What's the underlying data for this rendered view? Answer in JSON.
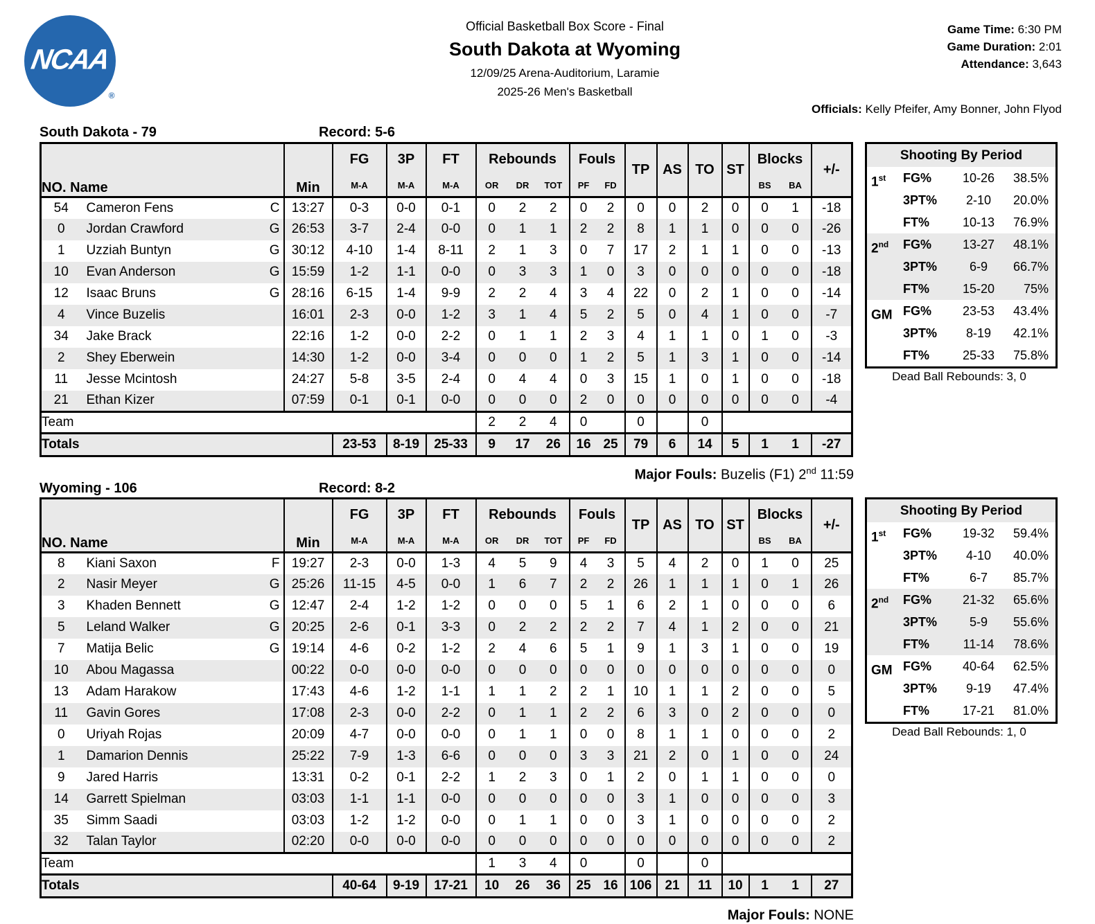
{
  "header": {
    "report_title": "Official Basketball Box Score - Final",
    "matchup": "South Dakota at Wyoming",
    "venue_line": "12/09/25 Arena-Auditorium, Laramie",
    "season_line": "2025-26 Men's Basketball",
    "game_time_label": "Game Time:",
    "game_time": " 6:30 PM",
    "game_duration_label": "Game Duration:",
    "game_duration": " 2:01",
    "attendance_label": "Attendance:",
    "attendance": " 3,643",
    "officials_label": "Officials:",
    "officials": " Kelly Pfeifer, Amy Bonner, John Flyod",
    "logo_text": "NCAA",
    "logo_reg": "®",
    "logo_color": "#2567ae"
  },
  "table_headers": {
    "no": "NO.",
    "name": "Name",
    "min": "Min",
    "fg": "FG",
    "p3": "3P",
    "ft": "FT",
    "ma": "M-A",
    "rebounds": "Rebounds",
    "or": "OR",
    "dr": "DR",
    "tot": "TOT",
    "fouls": "Fouls",
    "pf": "PF",
    "fd": "FD",
    "tp": "TP",
    "as": "AS",
    "to": "TO",
    "st": "ST",
    "blocks": "Blocks",
    "bs": "BS",
    "ba": "BA",
    "plus_minus": "+/-",
    "team_row_label": "Team",
    "totals_row_label": "Totals"
  },
  "teams": [
    {
      "title": "South Dakota - 79",
      "record": "Record: 5-6",
      "players": [
        {
          "no": "54",
          "name": "Cameron Fens",
          "pos": "C",
          "min": "13:27",
          "fg": "0-3",
          "p3": "0-0",
          "ft": "0-1",
          "or": "0",
          "dr": "2",
          "tot": "2",
          "pf": "0",
          "fd": "2",
          "tp": "0",
          "as": "0",
          "to": "2",
          "st": "0",
          "bs": "0",
          "ba": "1",
          "pm": "-18"
        },
        {
          "no": "0",
          "name": "Jordan Crawford",
          "pos": "G",
          "min": "26:53",
          "fg": "3-7",
          "p3": "2-4",
          "ft": "0-0",
          "or": "0",
          "dr": "1",
          "tot": "1",
          "pf": "2",
          "fd": "2",
          "tp": "8",
          "as": "1",
          "to": "1",
          "st": "0",
          "bs": "0",
          "ba": "0",
          "pm": "-26"
        },
        {
          "no": "1",
          "name": "Uzziah Buntyn",
          "pos": "G",
          "min": "30:12",
          "fg": "4-10",
          "p3": "1-4",
          "ft": "8-11",
          "or": "2",
          "dr": "1",
          "tot": "3",
          "pf": "0",
          "fd": "7",
          "tp": "17",
          "as": "2",
          "to": "1",
          "st": "1",
          "bs": "0",
          "ba": "0",
          "pm": "-13"
        },
        {
          "no": "10",
          "name": "Evan Anderson",
          "pos": "G",
          "min": "15:59",
          "fg": "1-2",
          "p3": "1-1",
          "ft": "0-0",
          "or": "0",
          "dr": "3",
          "tot": "3",
          "pf": "1",
          "fd": "0",
          "tp": "3",
          "as": "0",
          "to": "0",
          "st": "0",
          "bs": "0",
          "ba": "0",
          "pm": "-18"
        },
        {
          "no": "12",
          "name": "Isaac Bruns",
          "pos": "G",
          "min": "28:16",
          "fg": "6-15",
          "p3": "1-4",
          "ft": "9-9",
          "or": "2",
          "dr": "2",
          "tot": "4",
          "pf": "3",
          "fd": "4",
          "tp": "22",
          "as": "0",
          "to": "2",
          "st": "1",
          "bs": "0",
          "ba": "0",
          "pm": "-14"
        },
        {
          "no": "4",
          "name": "Vince Buzelis",
          "pos": "",
          "min": "16:01",
          "fg": "2-3",
          "p3": "0-0",
          "ft": "1-2",
          "or": "3",
          "dr": "1",
          "tot": "4",
          "pf": "5",
          "fd": "2",
          "tp": "5",
          "as": "0",
          "to": "4",
          "st": "1",
          "bs": "0",
          "ba": "0",
          "pm": "-7"
        },
        {
          "no": "34",
          "name": "Jake Brack",
          "pos": "",
          "min": "22:16",
          "fg": "1-2",
          "p3": "0-0",
          "ft": "2-2",
          "or": "0",
          "dr": "1",
          "tot": "1",
          "pf": "2",
          "fd": "3",
          "tp": "4",
          "as": "1",
          "to": "1",
          "st": "0",
          "bs": "1",
          "ba": "0",
          "pm": "-3"
        },
        {
          "no": "2",
          "name": "Shey Eberwein",
          "pos": "",
          "min": "14:30",
          "fg": "1-2",
          "p3": "0-0",
          "ft": "3-4",
          "or": "0",
          "dr": "0",
          "tot": "0",
          "pf": "1",
          "fd": "2",
          "tp": "5",
          "as": "1",
          "to": "3",
          "st": "1",
          "bs": "0",
          "ba": "0",
          "pm": "-14"
        },
        {
          "no": "11",
          "name": "Jesse Mcintosh",
          "pos": "",
          "min": "24:27",
          "fg": "5-8",
          "p3": "3-5",
          "ft": "2-4",
          "or": "0",
          "dr": "4",
          "tot": "4",
          "pf": "0",
          "fd": "3",
          "tp": "15",
          "as": "1",
          "to": "0",
          "st": "1",
          "bs": "0",
          "ba": "0",
          "pm": "-18"
        },
        {
          "no": "21",
          "name": "Ethan Kizer",
          "pos": "",
          "min": "07:59",
          "fg": "0-1",
          "p3": "0-1",
          "ft": "0-0",
          "or": "0",
          "dr": "0",
          "tot": "0",
          "pf": "2",
          "fd": "0",
          "tp": "0",
          "as": "0",
          "to": "0",
          "st": "0",
          "bs": "0",
          "ba": "0",
          "pm": "-4"
        }
      ],
      "team_row": {
        "or": "2",
        "dr": "2",
        "tot": "4",
        "pf": "0",
        "fd": "",
        "tp": "0",
        "as": "",
        "to": "0"
      },
      "totals": {
        "fg": "23-53",
        "p3": "8-19",
        "ft": "25-33",
        "or": "9",
        "dr": "17",
        "tot": "26",
        "pf": "16",
        "fd": "25",
        "tp": "79",
        "as": "6",
        "to": "14",
        "st": "5",
        "bs": "1",
        "ba": "1",
        "pm": "-27"
      },
      "shooting": {
        "title": "Shooting By Period",
        "rows": [
          {
            "period": "1",
            "sup": "st",
            "stat": "FG%",
            "made": "10-26",
            "pct": "38.5%"
          },
          {
            "period": "",
            "sup": "",
            "stat": "3PT%",
            "made": "2-10",
            "pct": "20.0%"
          },
          {
            "period": "",
            "sup": "",
            "stat": "FT%",
            "made": "10-13",
            "pct": "76.9%"
          },
          {
            "period": "2",
            "sup": "nd",
            "stat": "FG%",
            "made": "13-27",
            "pct": "48.1%"
          },
          {
            "period": "",
            "sup": "",
            "stat": "3PT%",
            "made": "6-9",
            "pct": "66.7%"
          },
          {
            "period": "",
            "sup": "",
            "stat": "FT%",
            "made": "15-20",
            "pct": "75%"
          },
          {
            "period": "GM",
            "sup": "",
            "stat": "FG%",
            "made": "23-53",
            "pct": "43.4%"
          },
          {
            "period": "",
            "sup": "",
            "stat": "3PT%",
            "made": "8-19",
            "pct": "42.1%"
          },
          {
            "period": "",
            "sup": "",
            "stat": "FT%",
            "made": "25-33",
            "pct": "75.8%"
          }
        ]
      },
      "dead_ball": "Dead Ball Rebounds: 3, 0",
      "major_fouls_label": "Major Fouls:",
      "major_fouls_pre": " Buzelis (F1) 2",
      "major_fouls_sup": "nd",
      "major_fouls_post": " 11:59"
    },
    {
      "title": "Wyoming - 106",
      "record": "Record: 8-2",
      "players": [
        {
          "no": "8",
          "name": "Kiani Saxon",
          "pos": "F",
          "min": "19:27",
          "fg": "2-3",
          "p3": "0-0",
          "ft": "1-3",
          "or": "4",
          "dr": "5",
          "tot": "9",
          "pf": "4",
          "fd": "3",
          "tp": "5",
          "as": "4",
          "to": "2",
          "st": "0",
          "bs": "1",
          "ba": "0",
          "pm": "25"
        },
        {
          "no": "2",
          "name": "Nasir Meyer",
          "pos": "G",
          "min": "25:26",
          "fg": "11-15",
          "p3": "4-5",
          "ft": "0-0",
          "or": "1",
          "dr": "6",
          "tot": "7",
          "pf": "2",
          "fd": "2",
          "tp": "26",
          "as": "1",
          "to": "1",
          "st": "1",
          "bs": "0",
          "ba": "1",
          "pm": "26"
        },
        {
          "no": "3",
          "name": "Khaden Bennett",
          "pos": "G",
          "min": "12:47",
          "fg": "2-4",
          "p3": "1-2",
          "ft": "1-2",
          "or": "0",
          "dr": "0",
          "tot": "0",
          "pf": "5",
          "fd": "1",
          "tp": "6",
          "as": "2",
          "to": "1",
          "st": "0",
          "bs": "0",
          "ba": "0",
          "pm": "6"
        },
        {
          "no": "5",
          "name": "Leland Walker",
          "pos": "G",
          "min": "20:25",
          "fg": "2-6",
          "p3": "0-1",
          "ft": "3-3",
          "or": "0",
          "dr": "2",
          "tot": "2",
          "pf": "2",
          "fd": "2",
          "tp": "7",
          "as": "4",
          "to": "1",
          "st": "2",
          "bs": "0",
          "ba": "0",
          "pm": "21"
        },
        {
          "no": "7",
          "name": "Matija Belic",
          "pos": "G",
          "min": "19:14",
          "fg": "4-6",
          "p3": "0-2",
          "ft": "1-2",
          "or": "2",
          "dr": "4",
          "tot": "6",
          "pf": "5",
          "fd": "1",
          "tp": "9",
          "as": "1",
          "to": "3",
          "st": "1",
          "bs": "0",
          "ba": "0",
          "pm": "19"
        },
        {
          "no": "10",
          "name": "Abou Magassa",
          "pos": "",
          "min": "00:22",
          "fg": "0-0",
          "p3": "0-0",
          "ft": "0-0",
          "or": "0",
          "dr": "0",
          "tot": "0",
          "pf": "0",
          "fd": "0",
          "tp": "0",
          "as": "0",
          "to": "0",
          "st": "0",
          "bs": "0",
          "ba": "0",
          "pm": "0"
        },
        {
          "no": "13",
          "name": "Adam Harakow",
          "pos": "",
          "min": "17:43",
          "fg": "4-6",
          "p3": "1-2",
          "ft": "1-1",
          "or": "1",
          "dr": "1",
          "tot": "2",
          "pf": "2",
          "fd": "1",
          "tp": "10",
          "as": "1",
          "to": "1",
          "st": "2",
          "bs": "0",
          "ba": "0",
          "pm": "5"
        },
        {
          "no": "11",
          "name": "Gavin Gores",
          "pos": "",
          "min": "17:08",
          "fg": "2-3",
          "p3": "0-0",
          "ft": "2-2",
          "or": "0",
          "dr": "1",
          "tot": "1",
          "pf": "2",
          "fd": "2",
          "tp": "6",
          "as": "3",
          "to": "0",
          "st": "2",
          "bs": "0",
          "ba": "0",
          "pm": "0"
        },
        {
          "no": "0",
          "name": "Uriyah Rojas",
          "pos": "",
          "min": "20:09",
          "fg": "4-7",
          "p3": "0-0",
          "ft": "0-0",
          "or": "0",
          "dr": "1",
          "tot": "1",
          "pf": "0",
          "fd": "0",
          "tp": "8",
          "as": "1",
          "to": "1",
          "st": "0",
          "bs": "0",
          "ba": "0",
          "pm": "2"
        },
        {
          "no": "1",
          "name": "Damarion Dennis",
          "pos": "",
          "min": "25:22",
          "fg": "7-9",
          "p3": "1-3",
          "ft": "6-6",
          "or": "0",
          "dr": "0",
          "tot": "0",
          "pf": "3",
          "fd": "3",
          "tp": "21",
          "as": "2",
          "to": "0",
          "st": "1",
          "bs": "0",
          "ba": "0",
          "pm": "24"
        },
        {
          "no": "9",
          "name": "Jared Harris",
          "pos": "",
          "min": "13:31",
          "fg": "0-2",
          "p3": "0-1",
          "ft": "2-2",
          "or": "1",
          "dr": "2",
          "tot": "3",
          "pf": "0",
          "fd": "1",
          "tp": "2",
          "as": "0",
          "to": "1",
          "st": "1",
          "bs": "0",
          "ba": "0",
          "pm": "0"
        },
        {
          "no": "14",
          "name": "Garrett Spielman",
          "pos": "",
          "min": "03:03",
          "fg": "1-1",
          "p3": "1-1",
          "ft": "0-0",
          "or": "0",
          "dr": "0",
          "tot": "0",
          "pf": "0",
          "fd": "0",
          "tp": "3",
          "as": "1",
          "to": "0",
          "st": "0",
          "bs": "0",
          "ba": "0",
          "pm": "3"
        },
        {
          "no": "35",
          "name": "Simm Saadi",
          "pos": "",
          "min": "03:03",
          "fg": "1-2",
          "p3": "1-2",
          "ft": "0-0",
          "or": "0",
          "dr": "1",
          "tot": "1",
          "pf": "0",
          "fd": "0",
          "tp": "3",
          "as": "1",
          "to": "0",
          "st": "0",
          "bs": "0",
          "ba": "0",
          "pm": "2"
        },
        {
          "no": "32",
          "name": "Talan Taylor",
          "pos": "",
          "min": "02:20",
          "fg": "0-0",
          "p3": "0-0",
          "ft": "0-0",
          "or": "0",
          "dr": "0",
          "tot": "0",
          "pf": "0",
          "fd": "0",
          "tp": "0",
          "as": "0",
          "to": "0",
          "st": "0",
          "bs": "0",
          "ba": "0",
          "pm": "2"
        }
      ],
      "team_row": {
        "or": "1",
        "dr": "3",
        "tot": "4",
        "pf": "0",
        "fd": "",
        "tp": "0",
        "as": "",
        "to": "0"
      },
      "totals": {
        "fg": "40-64",
        "p3": "9-19",
        "ft": "17-21",
        "or": "10",
        "dr": "26",
        "tot": "36",
        "pf": "25",
        "fd": "16",
        "tp": "106",
        "as": "21",
        "to": "11",
        "st": "10",
        "bs": "1",
        "ba": "1",
        "pm": "27"
      },
      "shooting": {
        "title": "Shooting By Period",
        "rows": [
          {
            "period": "1",
            "sup": "st",
            "stat": "FG%",
            "made": "19-32",
            "pct": "59.4%"
          },
          {
            "period": "",
            "sup": "",
            "stat": "3PT%",
            "made": "4-10",
            "pct": "40.0%"
          },
          {
            "period": "",
            "sup": "",
            "stat": "FT%",
            "made": "6-7",
            "pct": "85.7%"
          },
          {
            "period": "2",
            "sup": "nd",
            "stat": "FG%",
            "made": "21-32",
            "pct": "65.6%"
          },
          {
            "period": "",
            "sup": "",
            "stat": "3PT%",
            "made": "5-9",
            "pct": "55.6%"
          },
          {
            "period": "",
            "sup": "",
            "stat": "FT%",
            "made": "11-14",
            "pct": "78.6%"
          },
          {
            "period": "GM",
            "sup": "",
            "stat": "FG%",
            "made": "40-64",
            "pct": "62.5%"
          },
          {
            "period": "",
            "sup": "",
            "stat": "3PT%",
            "made": "9-19",
            "pct": "47.4%"
          },
          {
            "period": "",
            "sup": "",
            "stat": "FT%",
            "made": "17-21",
            "pct": "81.0%"
          }
        ]
      },
      "dead_ball": "Dead Ball Rebounds: 1, 0",
      "major_fouls_label": "Major Fouls:",
      "major_fouls_pre": " NONE",
      "major_fouls_sup": "",
      "major_fouls_post": ""
    }
  ]
}
